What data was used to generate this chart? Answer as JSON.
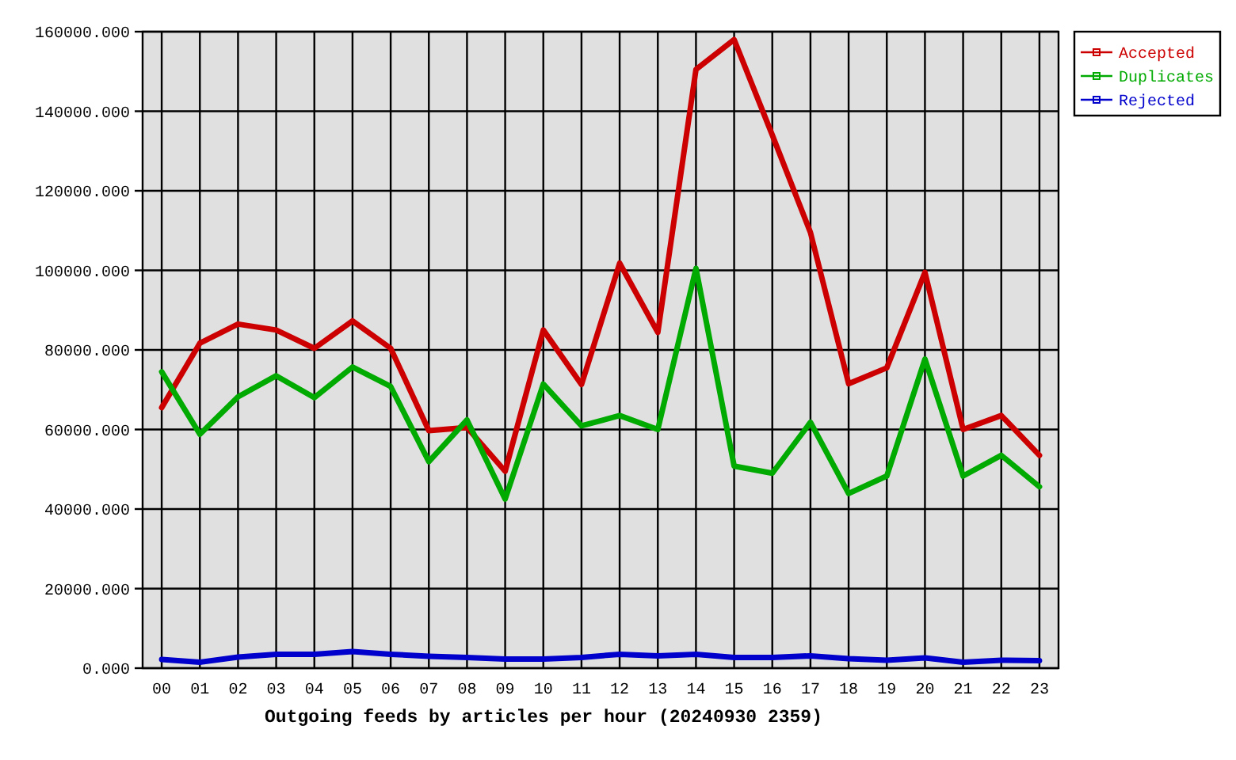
{
  "chart_data": {
    "type": "line",
    "xlabel": "Outgoing feeds by articles per hour (20240930 2359)",
    "categories": [
      "00",
      "01",
      "02",
      "03",
      "04",
      "05",
      "06",
      "07",
      "08",
      "09",
      "10",
      "11",
      "12",
      "13",
      "14",
      "15",
      "16",
      "17",
      "18",
      "19",
      "20",
      "21",
      "22",
      "23"
    ],
    "series": [
      {
        "name": "Accepted",
        "color": "#cc0000",
        "values": [
          65500,
          81700,
          86500,
          85000,
          80400,
          87300,
          80400,
          59700,
          60500,
          49500,
          85000,
          71300,
          101800,
          84400,
          150500,
          158000,
          134000,
          109500,
          71500,
          75500,
          99500,
          60000,
          63500,
          53500
        ]
      },
      {
        "name": "Duplicates",
        "color": "#00aa00",
        "values": [
          74500,
          58800,
          68200,
          73500,
          68000,
          75700,
          70800,
          51900,
          62400,
          42500,
          71400,
          60900,
          63500,
          60000,
          100500,
          50800,
          49000,
          61800,
          43900,
          48300,
          77700,
          48300,
          53500,
          45600
        ]
      },
      {
        "name": "Rejected",
        "color": "#0000cc",
        "values": [
          2200,
          1500,
          2800,
          3500,
          3500,
          4200,
          3500,
          3000,
          2700,
          2300,
          2300,
          2700,
          3500,
          3100,
          3500,
          2700,
          2700,
          3100,
          2400,
          2000,
          2600,
          1500,
          2000,
          1900
        ]
      }
    ],
    "ylim": [
      0,
      160000
    ],
    "yticks": [
      {
        "value": 0,
        "label": "0.000"
      },
      {
        "value": 20000,
        "label": "20000.000"
      },
      {
        "value": 40000,
        "label": "40000.000"
      },
      {
        "value": 60000,
        "label": "60000.000"
      },
      {
        "value": 80000,
        "label": "80000.000"
      },
      {
        "value": 100000,
        "label": "100000.000"
      },
      {
        "value": 120000,
        "label": "120000.000"
      },
      {
        "value": 140000,
        "label": "140000.000"
      },
      {
        "value": 160000,
        "label": "160000.000"
      }
    ],
    "grid": true,
    "legend": "top right"
  }
}
